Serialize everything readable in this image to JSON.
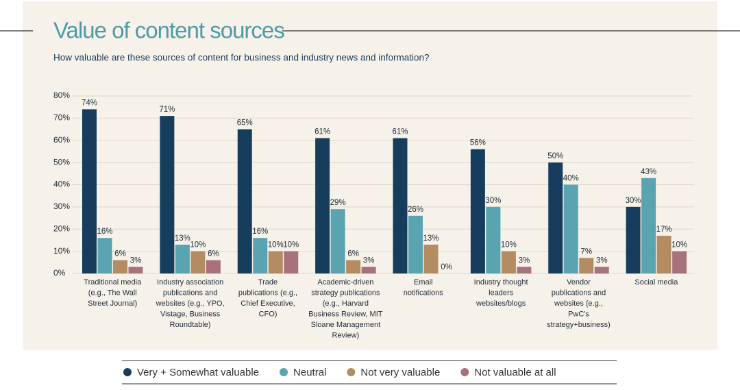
{
  "chart_data": {
    "type": "bar",
    "title": "Value of content sources",
    "subtitle": "How valuable are these sources of content for business and industry news and information?",
    "categories": [
      "Traditional media\n(e.g., The Wall\nStreet Journal)",
      "Industry association\npublications and\nwebsites (e.g., YPO,\nVistage, Business\nRoundtable)",
      "Trade\npublications (e.g.,\nChief Executive,\nCFO)",
      "Academic-driven\nstrategy publications\n(e.g., Harvard\nBusiness Review, MIT\nSloane Management\nReview)",
      "Email\nnotifications",
      "Industry thought\nleaders\nwebsites/blogs",
      "Vendor\npublications and\nwebsites (e.g.,\nPwC's\nstrategy+business)",
      "Social media"
    ],
    "series": [
      {
        "name": "Very + Somewhat valuable",
        "color": "#173d5c",
        "values": [
          74,
          71,
          65,
          61,
          61,
          56,
          50,
          30
        ],
        "value_labels": [
          "74%",
          "71%",
          "65%",
          "61%",
          "61%",
          "56%",
          "50%",
          "30%"
        ]
      },
      {
        "name": "Neutral",
        "color": "#5aa3b0",
        "values": [
          16,
          13,
          16,
          29,
          26,
          30,
          40,
          43
        ],
        "value_labels": [
          "16%",
          "13%",
          "16%",
          "29%",
          "26%",
          "30%",
          "40%",
          "43%"
        ]
      },
      {
        "name": "Not very valuable",
        "color": "#b48c62",
        "values": [
          6,
          10,
          10,
          6,
          13,
          10,
          7,
          17
        ],
        "value_labels": [
          "6%",
          "10%",
          "10%",
          "6%",
          "13%",
          "10%",
          "7%",
          "17%"
        ]
      },
      {
        "name": "Not valuable at all",
        "color": "#a9727a",
        "values": [
          3,
          6,
          10,
          3,
          0,
          3,
          3,
          10
        ],
        "value_labels": [
          "3%",
          "6%",
          "10%",
          "3%",
          "0%",
          "3%",
          "3%",
          "10%"
        ]
      }
    ],
    "ylim": [
      0,
      80
    ],
    "yticks": [
      {
        "value": 0,
        "label": "0%"
      },
      {
        "value": 10,
        "label": "10%"
      },
      {
        "value": 20,
        "label": "20%"
      },
      {
        "value": 30,
        "label": "30%"
      },
      {
        "value": 40,
        "label": "40%"
      },
      {
        "value": 50,
        "label": "50%"
      },
      {
        "value": 60,
        "label": "60%"
      },
      {
        "value": 70,
        "label": "70%"
      },
      {
        "value": 80,
        "label": "80%"
      }
    ],
    "grid": true
  }
}
